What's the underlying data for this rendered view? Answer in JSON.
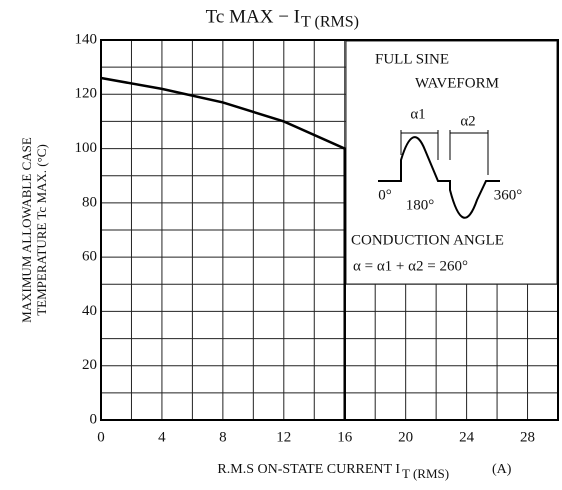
{
  "chart_data": {
    "type": "line",
    "title": "Tc MAX  −  I",
    "title_subscript": "T (RMS)",
    "y_label_line1": "MAXIMUM ALLOWABLE CASE",
    "y_label_line2": "TEMPERATURE   Tc MAX.  (°C)",
    "x_label": "R.M.S ON-STATE CURRENT   I",
    "x_label_subscript": "T (RMS)",
    "x_label_unit": "(A)",
    "x": [
      0,
      4,
      8,
      12,
      16,
      16
    ],
    "series": [
      {
        "name": "Tc MAX",
        "color": "#000000",
        "values": [
          126,
          122,
          117,
          110,
          100,
          0
        ]
      }
    ],
    "xlim": [
      0,
      30
    ],
    "xticks": [
      0,
      4,
      8,
      12,
      16,
      20,
      24,
      28
    ],
    "ylim": [
      0,
      140
    ],
    "yticks": [
      0,
      20,
      40,
      60,
      80,
      100,
      120,
      140
    ],
    "grid": true,
    "annotations": {
      "line1": "FULL SINE",
      "line2": "WAVEFORM",
      "a1": "α1",
      "a2": "α2",
      "deg0": "0°",
      "deg180": "180°",
      "deg360": "360°",
      "conduction": "CONDUCTION ANGLE",
      "formula": "α = α1 + α2 = 260°"
    }
  }
}
